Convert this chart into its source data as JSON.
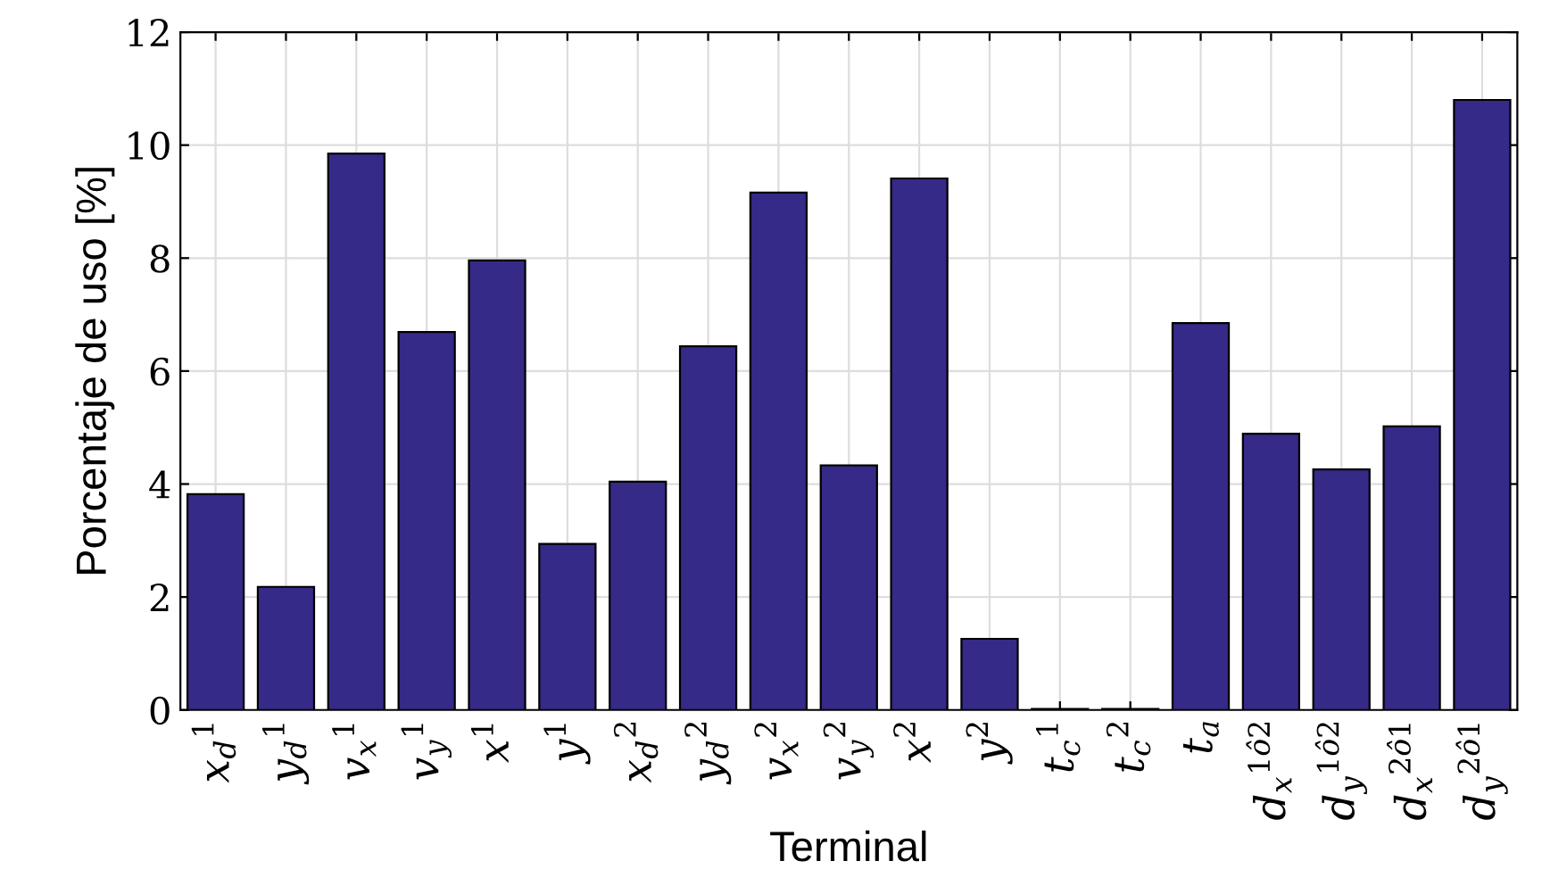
{
  "chart_data": {
    "type": "bar",
    "xlabel": "Terminal",
    "ylabel": "Porcentaje de uso [%]",
    "categories": [
      "x$_{d}$$^{1}$",
      "y$_{d}$$^{1}$",
      "v$_{x}$$^{1}$",
      "v$_{y}$$^{1}$",
      "x$^{1}$",
      "y$^{1}$",
      "x$_{d}$$^{2}$",
      "y$_{d}$$^{2}$",
      "v$_{x}$$^{2}$",
      "v$_{y}$$^{2}$",
      "x$^{2}$",
      "y$^{2}$",
      "t$_{c}$$^{1}$",
      "t$_{c}$$^{2}$",
      "t$_{a}$",
      "d$_{x}$$^{1ô2}$",
      "d$_{y}$$^{1ô2}$",
      "d$_{x}$$^{2ô1}$",
      "d$_{y}$$^{2ô1}$"
    ],
    "values": [
      3.82,
      2.18,
      9.85,
      6.69,
      7.96,
      2.94,
      4.04,
      6.44,
      9.16,
      4.33,
      9.41,
      1.26,
      0.02,
      0.02,
      6.85,
      4.89,
      4.26,
      5.02,
      10.8
    ],
    "color": "#352a87",
    "ylim": [
      0,
      12
    ],
    "yticks": [
      0,
      2,
      4,
      6,
      8,
      10,
      12
    ],
    "grid": true
  }
}
